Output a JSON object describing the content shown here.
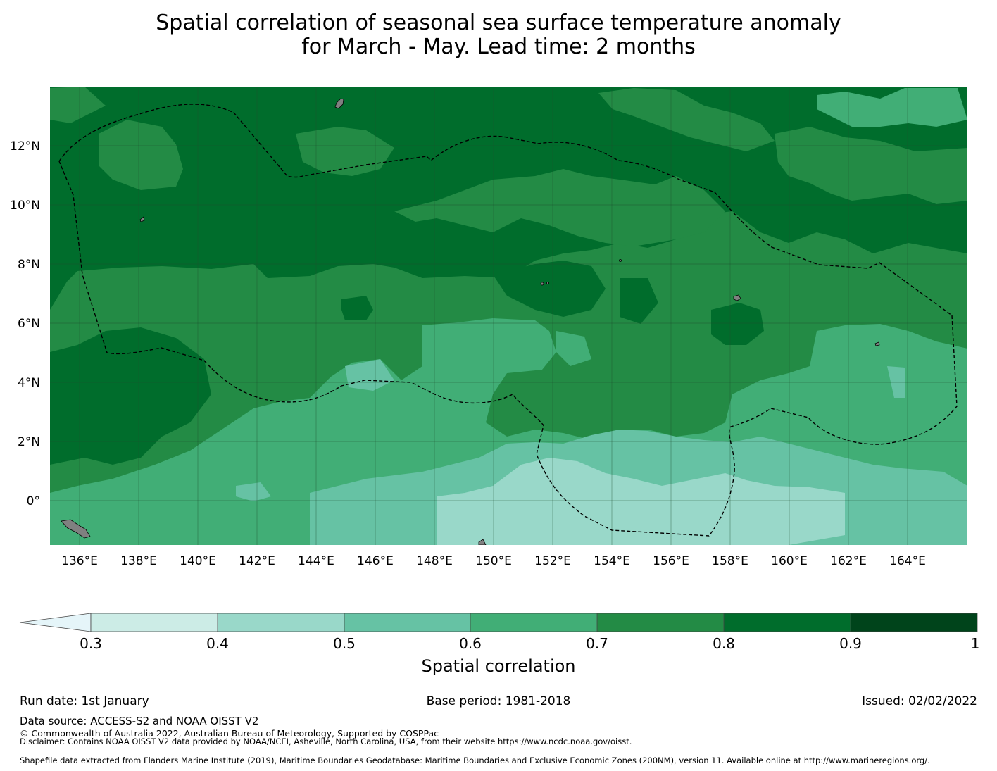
{
  "title": {
    "line1": "Spatial correlation of seasonal sea surface temperature anomaly",
    "line2": "for March - May. Lead time: 2 months"
  },
  "map": {
    "lat_labels": [
      "12°N",
      "10°N",
      "8°N",
      "6°N",
      "4°N",
      "2°N",
      "0°"
    ],
    "lon_labels": [
      "136°E",
      "138°E",
      "140°E",
      "142°E",
      "144°E",
      "146°E",
      "148°E",
      "150°E",
      "152°E",
      "154°E",
      "156°E",
      "158°E",
      "160°E",
      "162°E",
      "164°E"
    ],
    "lat_values": [
      12,
      10,
      8,
      6,
      4,
      2,
      0
    ],
    "lon_values": [
      136,
      138,
      140,
      142,
      144,
      146,
      148,
      150,
      152,
      154,
      156,
      158,
      160,
      162,
      164
    ],
    "extent": {
      "lon_min": 135.0,
      "lon_max": 166.0,
      "lat_min": -1.5,
      "lat_max": 14.0
    },
    "land_color": "#808080",
    "boundary_style": "dashed black line (maritime EEZ boundary)"
  },
  "colorbar": {
    "label": "Spatial correlation",
    "ticks": [
      "0.3",
      "0.4",
      "0.5",
      "0.6",
      "0.7",
      "0.8",
      "0.9",
      "1"
    ],
    "colors": [
      "#e5f5f9",
      "#ccece6",
      "#99d8c9",
      "#66c2a4",
      "#41ae76",
      "#238b45",
      "#006d2c",
      "#00441b"
    ]
  },
  "footer": {
    "run_date": "Run date: 1st January",
    "base_period": "Base period: 1981-2018",
    "issued": "Issued: 02/02/2022",
    "data_source": "Data source: ACCESS-S2 and NOAA OISST V2",
    "copyright": "© Commonwealth of Australia 2022, Australian Bureau of Meteorology, Supported by COSPPac",
    "disclaimer": "Disclaimer: Contains NOAA OISST V2 data provided by NOAA/NCEI, Asheville, North Carolina, USA, from their website https://www.ncdc.noaa.gov/oisst.",
    "shapefile": "Shapefile data extracted from Flanders Marine Institute (2019), Maritime Boundaries Geodatabase: Maritime Boundaries and Exclusive Economic Zones (200NM), version 11. Available online at http://www.marineregions.org/."
  }
}
